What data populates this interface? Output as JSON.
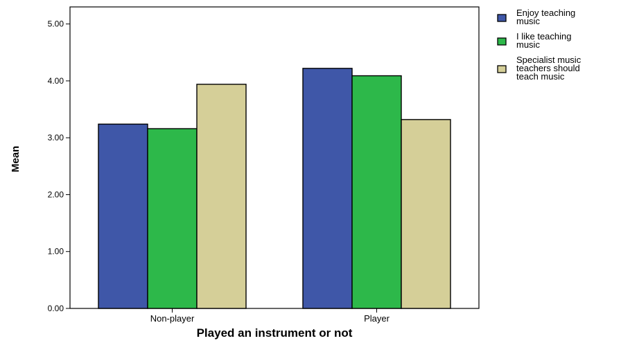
{
  "chart_data": {
    "type": "bar",
    "title": "",
    "xlabel": "Played an instrument or not",
    "ylabel": "Mean",
    "categories": [
      "Non-player",
      "Player"
    ],
    "series": [
      {
        "name": "Enjoy teaching music",
        "legend_lines": [
          "Enjoy teaching",
          "music"
        ],
        "color": "#3f57a8",
        "values": [
          3.24,
          4.22
        ]
      },
      {
        "name": "I like teaching music",
        "legend_lines": [
          "I like teaching",
          "music"
        ],
        "color": "#2db84a",
        "values": [
          3.16,
          4.09
        ]
      },
      {
        "name": "Specialist music teachers should teach music",
        "legend_lines": [
          "Specialist music",
          "teachers should",
          "teach music"
        ],
        "color": "#d5cf98",
        "values": [
          3.94,
          3.32
        ]
      }
    ],
    "ylim": [
      0,
      5.3
    ],
    "yticks": [
      "0.00",
      "1.00",
      "2.00",
      "3.00",
      "4.00",
      "5.00"
    ],
    "grid": false,
    "legend_position": "right"
  }
}
